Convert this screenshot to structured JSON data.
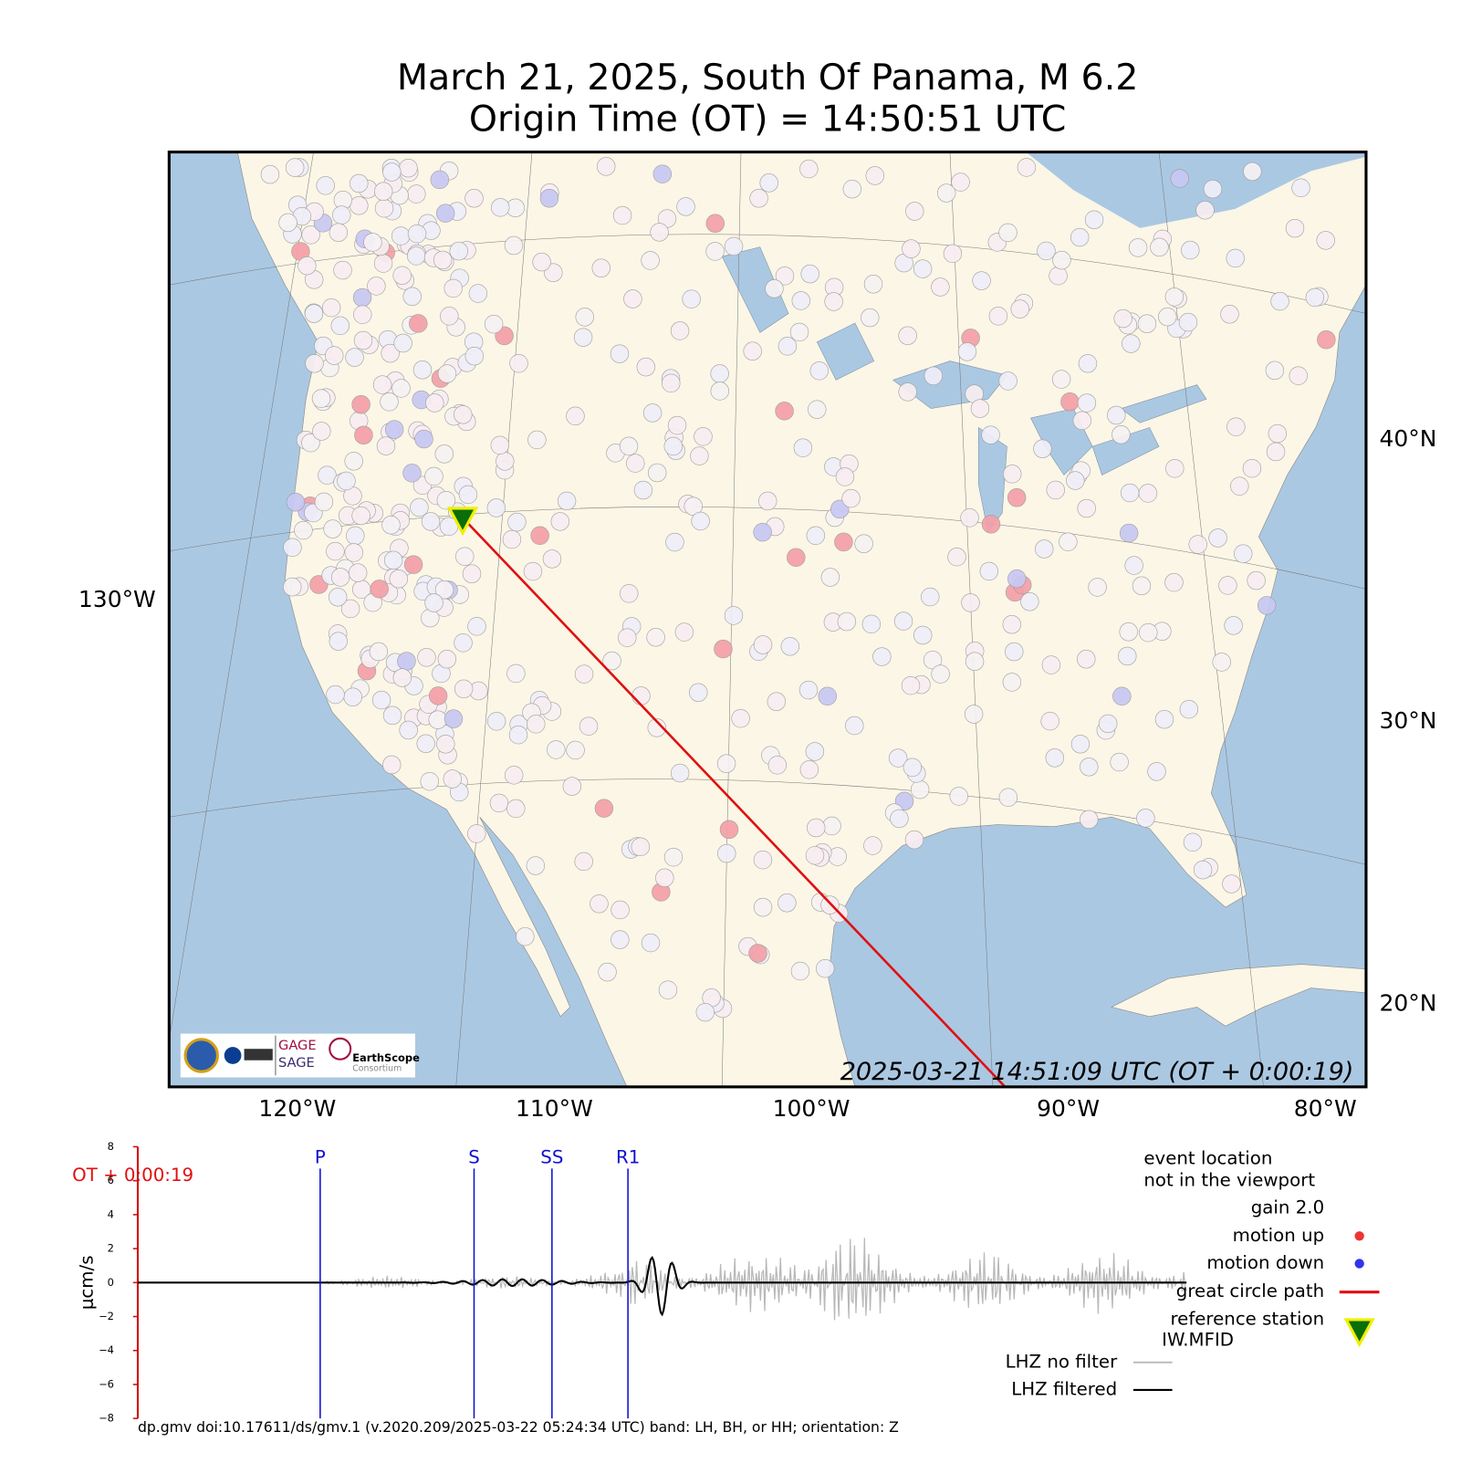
{
  "title": [
    "March 21, 2025, South Of Panama, M 6.2",
    "Origin Time (OT) = 14:50:51 UTC"
  ],
  "map": {
    "lon_ticks": [
      {
        "value": -120,
        "label": "120°W"
      },
      {
        "value": -110,
        "label": "110°W"
      },
      {
        "value": -100,
        "label": "100°W"
      },
      {
        "value": -90,
        "label": "90°W"
      },
      {
        "value": -80,
        "label": "80°W"
      }
    ],
    "lat_ticks": [
      {
        "value": 40,
        "label": "40°N"
      },
      {
        "value": 30,
        "label": "30°N"
      },
      {
        "value": 20,
        "label": "20°N"
      }
    ],
    "left_label": "130°W",
    "timestamp": "2025-03-21 14:51:09 UTC (OT + 0:00:19)",
    "logos": [
      "GAGE",
      "SAGE",
      "EarthScope",
      "Consortium"
    ]
  },
  "seismogram": {
    "ylabel": "μcm/s",
    "ylim": [
      -8,
      8
    ],
    "yticks": [
      {
        "value": -8,
        "label": "−8"
      },
      {
        "value": -6,
        "label": "−6"
      },
      {
        "value": -4,
        "label": "−4"
      },
      {
        "value": -2,
        "label": "−2"
      },
      0,
      2,
      4,
      6,
      8
    ],
    "time_label": "OT + 0:00:19",
    "phases": [
      "P",
      "S",
      "SS",
      "R1"
    ]
  },
  "legend": {
    "event_note": [
      "event location",
      "not in the viewport"
    ],
    "gain": "gain  2.0",
    "motion_up": "motion up",
    "motion_down": "motion down",
    "great_circle": "great circle path",
    "reference": [
      "reference station",
      "IW.MFID"
    ],
    "raw": "LHZ no filter",
    "filtered": "LHZ filtered"
  },
  "footer": "dp.gmv doi:10.17611/ds/gmv.1 (v.2020.209/2025-03-22 05:24:34 UTC) band: LH, BH, or HH; orientation: Z"
}
